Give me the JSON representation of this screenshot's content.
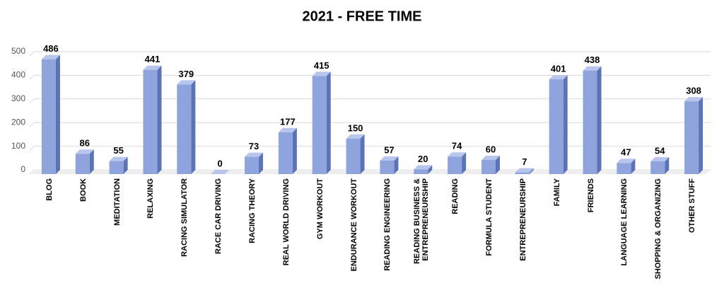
{
  "chart_data": {
    "type": "bar",
    "title": "2021 - FREE TIME",
    "categories": [
      "BLOG",
      "BOOK",
      "MEDITATION",
      "RELAXING",
      "RACING SIMULATOR",
      "RACE CAR DRIVING",
      "RACING THEORY",
      "REAL WORLD DRIVING",
      "GYM WORKOUT",
      "ENDURANCE WORKOUT",
      "READING ENGINEERING",
      "READING BUSINESS & ENTREPRENEURSHIP",
      "READING",
      "FORMULA STUDENT",
      "ENTREPRENEURSHIP",
      "FAMILY",
      "FRIENDS",
      "LANGUAGE LEARNING",
      "SHOPPING & ORGANIZING",
      "OTHER STUFF"
    ],
    "values": [
      486,
      86,
      55,
      441,
      379,
      0,
      73,
      177,
      415,
      150,
      57,
      20,
      74,
      60,
      7,
      401,
      438,
      47,
      54,
      308
    ],
    "color": "#8fa3dc",
    "ylim": [
      0,
      500
    ],
    "yticks": [
      0,
      100,
      200,
      300,
      400,
      500
    ],
    "grid": true
  }
}
